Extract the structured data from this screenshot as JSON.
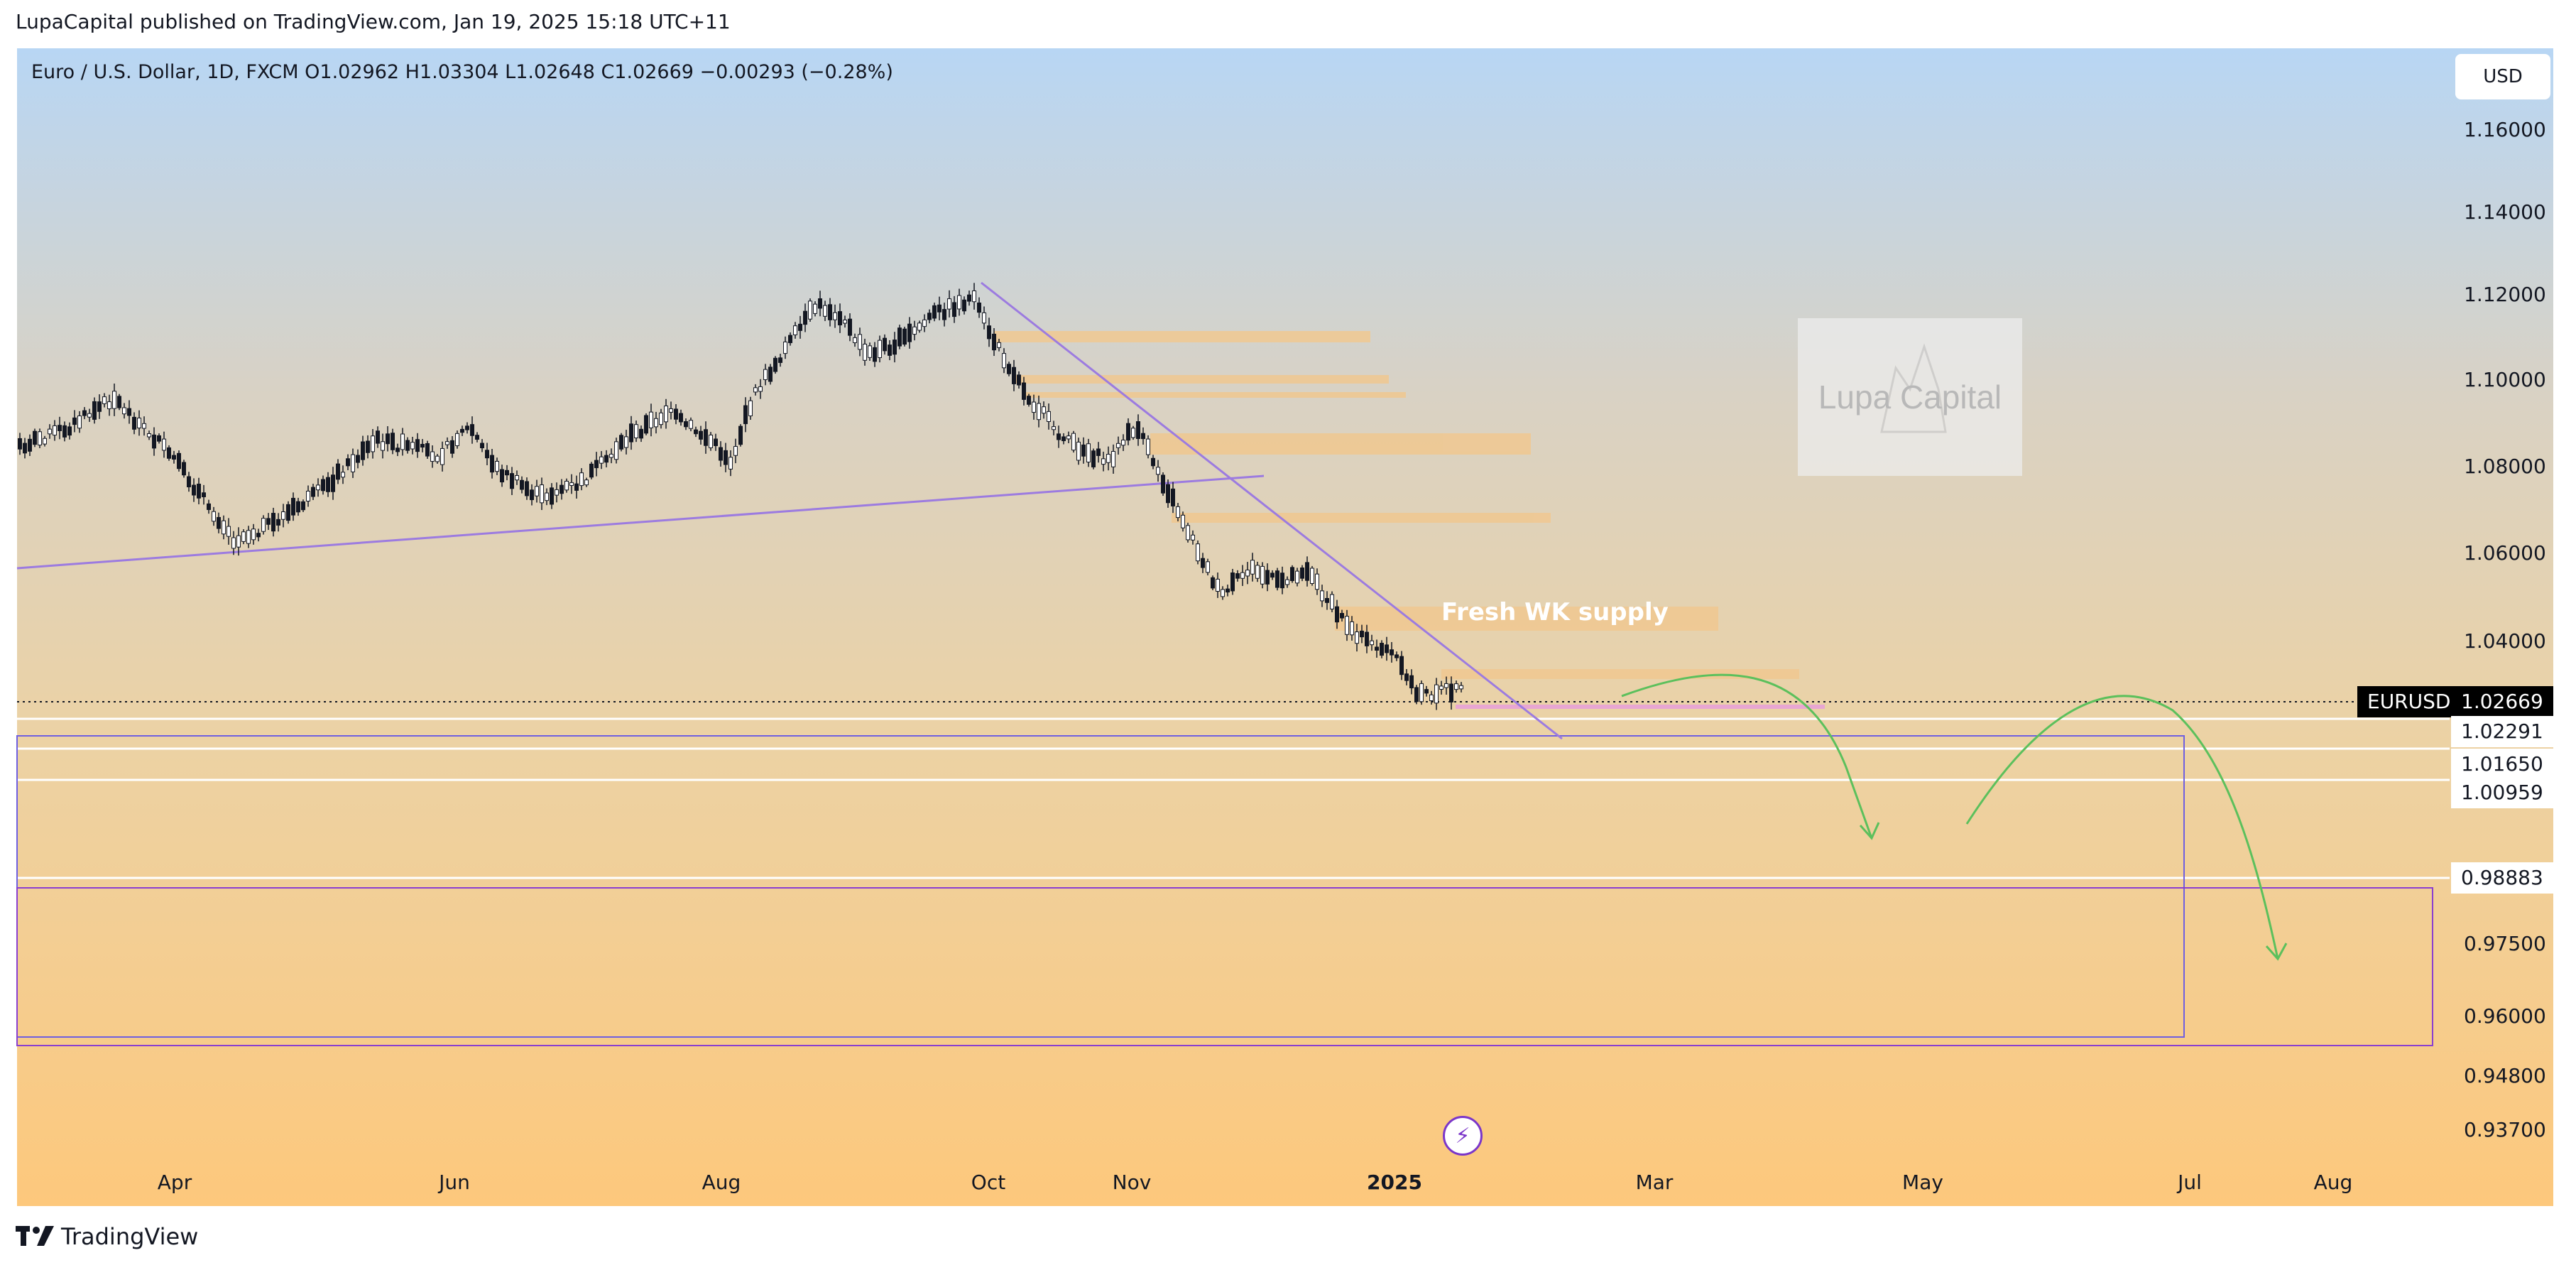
{
  "publisher_line": "LupaCapital published on TradingView.com, Jan 19, 2025 15:18 UTC+11",
  "symbol_header": "Euro / U.S. Dollar, 1D, FXCM  O1.02962  H1.03304  L1.02648  C1.02669  −0.00293 (−0.28%)",
  "currency_button": "USD",
  "price_axis": [
    "1.16000",
    "1.14000",
    "1.12000",
    "1.10000",
    "1.08000",
    "1.06000",
    "1.04000",
    "0.97500",
    "0.96000",
    "0.94800",
    "0.93700"
  ],
  "price_tags": {
    "symbol": "EURUSD",
    "current": "1.02669",
    "level_1": "1.02291",
    "level_2": "1.01650",
    "level_3": "1.00959",
    "level_4": "0.98883"
  },
  "time_axis": [
    "Apr",
    "Jun",
    "Aug",
    "Oct",
    "Nov",
    "2025",
    "Mar",
    "May",
    "Jul",
    "Aug"
  ],
  "annotation": "Fresh WK supply",
  "watermark": "Lupa Capital",
  "footer_brand": "TradingView",
  "colors": {
    "supply_zone": "#f0c890",
    "trendline": "#9c7be0",
    "box_outline": "#6f5fe0",
    "projection": "#5cc05c",
    "candle": "#131722",
    "price_tag_dark": "#000000"
  },
  "icons": [
    "tradingview-logo-icon",
    "flash-icon"
  ],
  "chart_data": {
    "type": "candlestick",
    "symbol": "EURUSD",
    "interval": "1D",
    "ohlc_last": {
      "open": 1.02962,
      "high": 1.03304,
      "low": 1.02648,
      "close": 1.02669
    },
    "horizontal_levels": [
      1.02669,
      1.02291,
      1.0165,
      1.00959,
      0.98883
    ],
    "supply_zones_label": "Fresh WK supply",
    "ylim": [
      0.93,
      1.18
    ],
    "grid": false
  }
}
